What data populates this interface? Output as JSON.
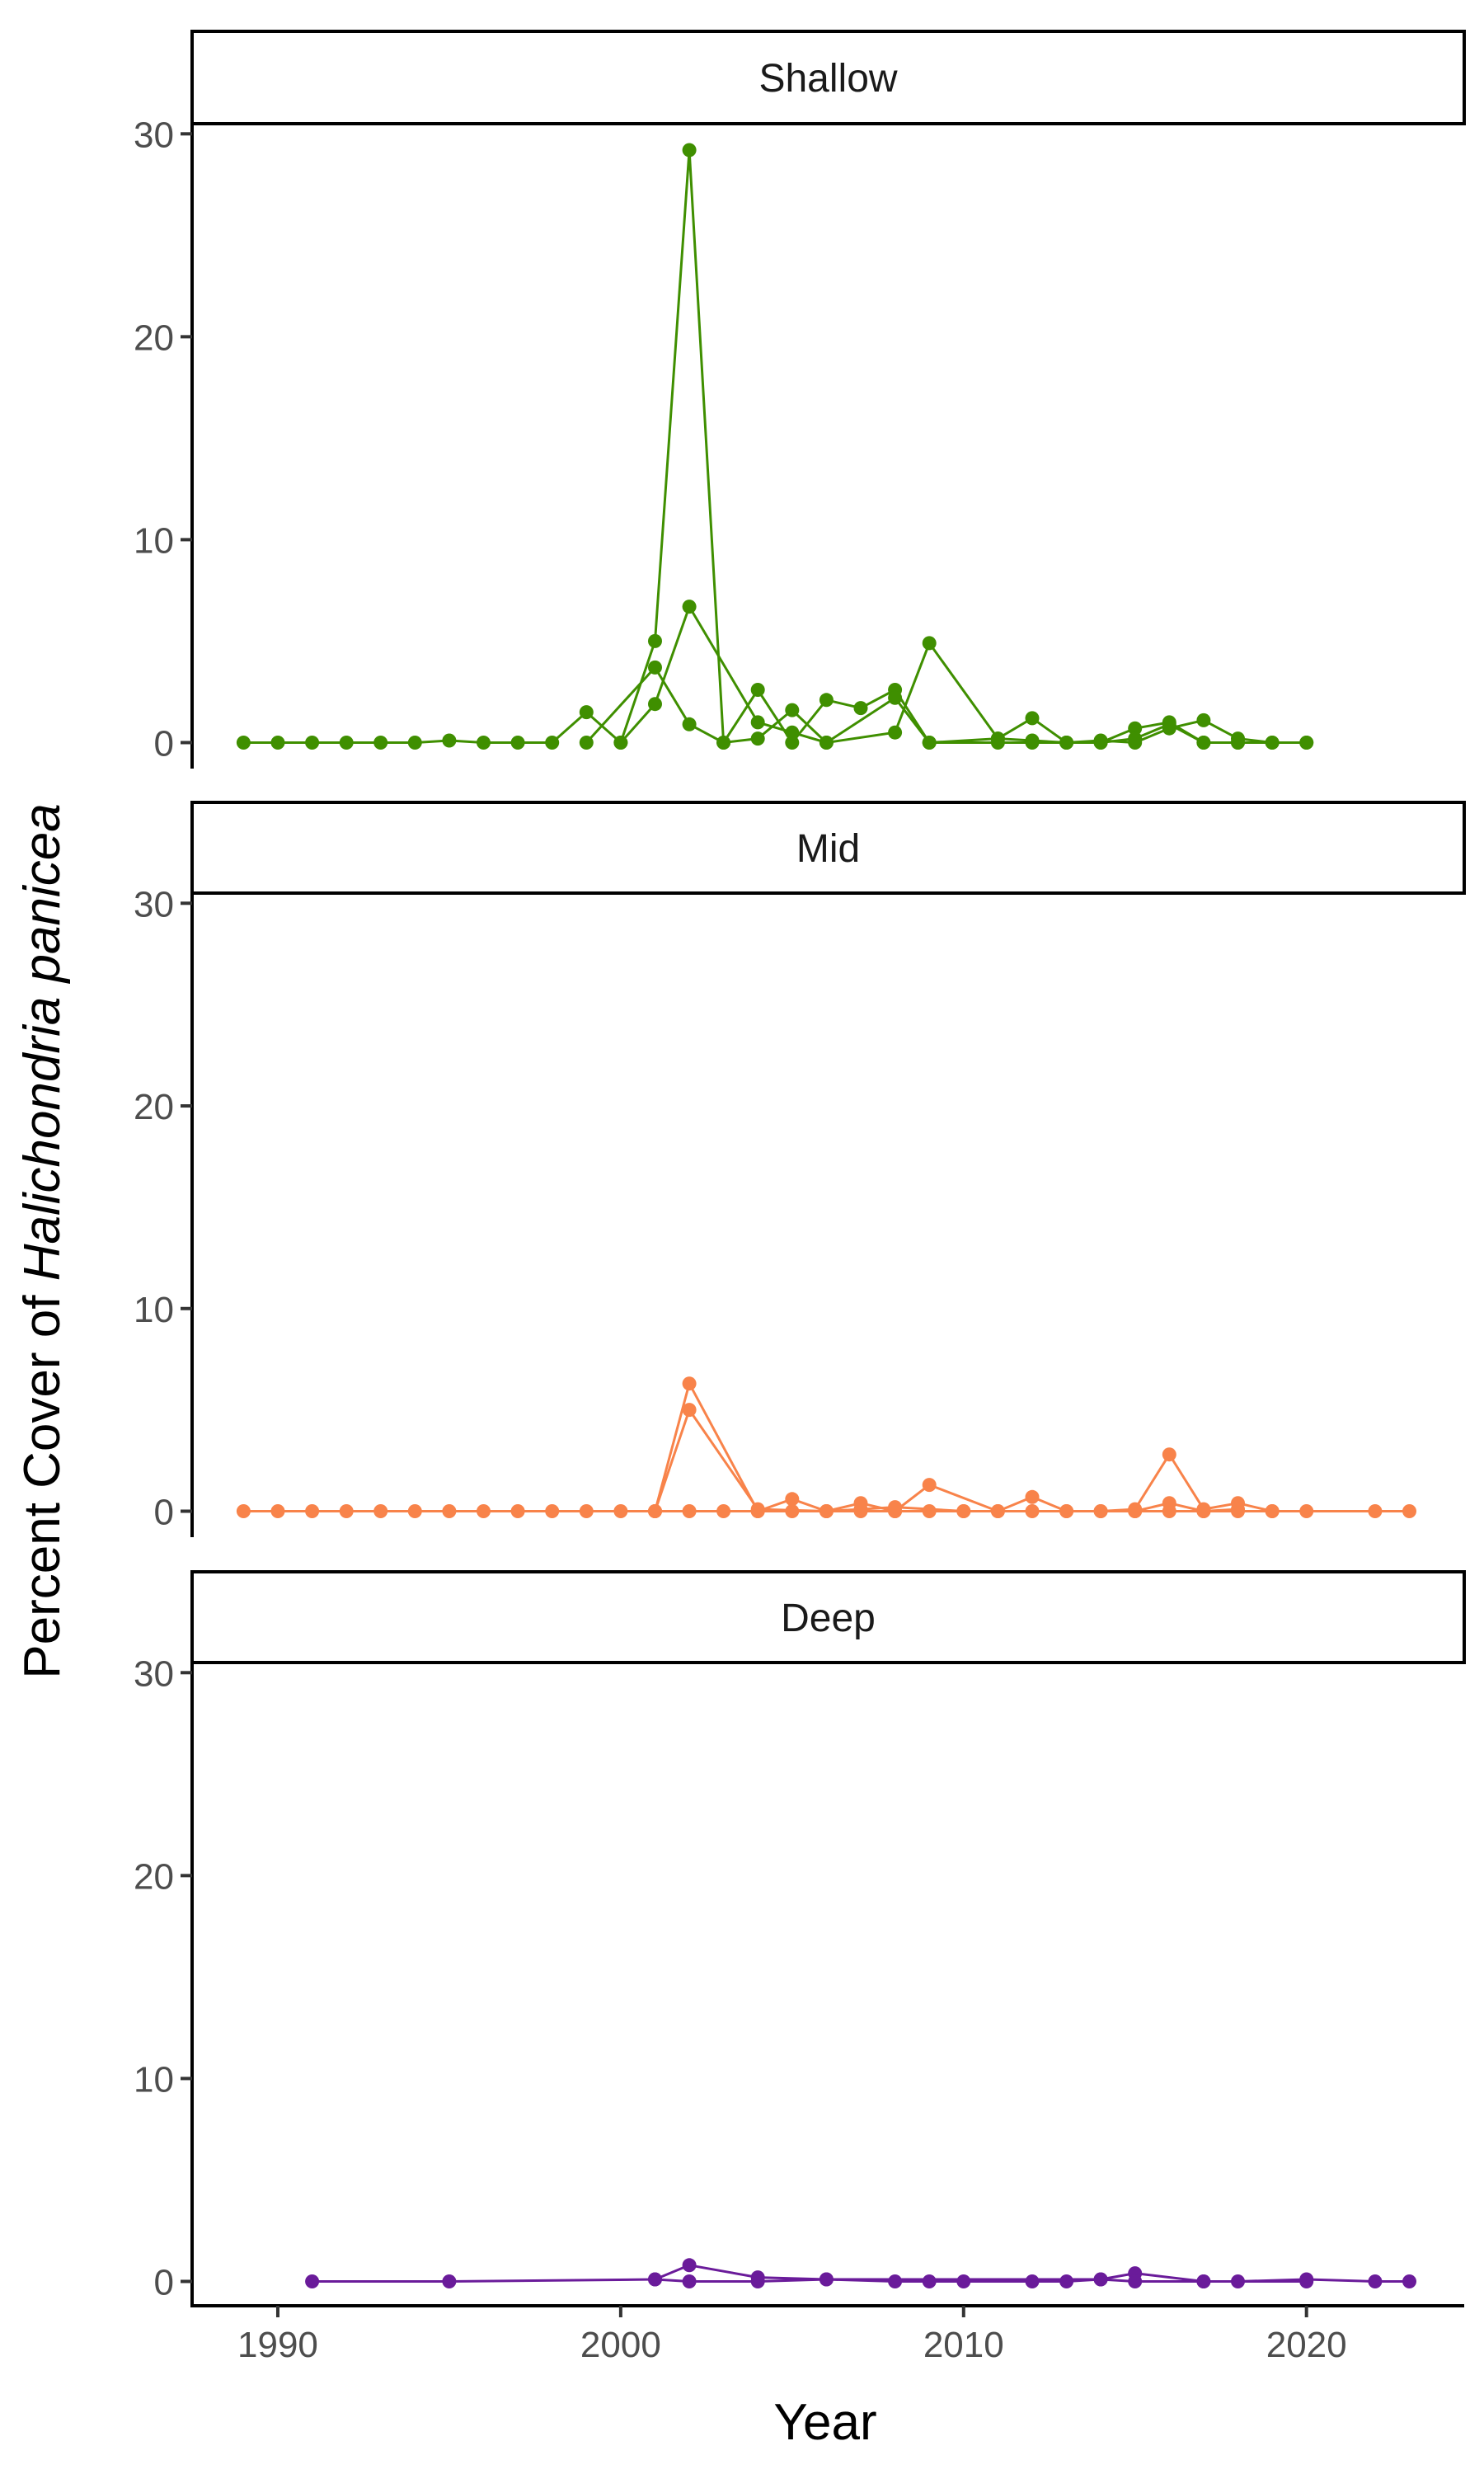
{
  "chart_data": {
    "type": "line",
    "xlabel": "Year",
    "ylabel": {
      "prefix": "Percent Cover of ",
      "species": "Halichondria panicea"
    },
    "xlim": [
      1987.5,
      2024.6
    ],
    "ylim": [
      -1.2,
      30.5
    ],
    "x_ticks": [
      1990,
      2000,
      2010,
      2020
    ],
    "y_ticks": [
      0,
      10,
      20,
      30
    ],
    "grid": false,
    "panels": [
      {
        "name": "Shallow",
        "color": "#3f8f00",
        "series": [
          {
            "points": [
              [
                1989,
                0
              ],
              [
                1990,
                0
              ],
              [
                1991,
                0
              ],
              [
                1992,
                0
              ],
              [
                1993,
                0
              ],
              [
                1994,
                0
              ],
              [
                1995,
                0.1
              ],
              [
                1996,
                0
              ],
              [
                1997,
                0
              ],
              [
                1998,
                0
              ],
              [
                1999,
                1.5
              ],
              [
                2000,
                0
              ],
              [
                2001,
                5.0
              ],
              [
                2002,
                29.2
              ],
              [
                2003,
                0
              ],
              [
                2004,
                2.6
              ],
              [
                2005,
                0
              ],
              [
                2006,
                2.1
              ],
              [
                2007,
                1.7
              ],
              [
                2008,
                2.6
              ],
              [
                2009,
                0
              ],
              [
                2011,
                0
              ],
              [
                2012,
                0
              ],
              [
                2013,
                0
              ],
              [
                2014,
                0
              ],
              [
                2015,
                0.7
              ],
              [
                2016,
                1.0
              ],
              [
                2017,
                0
              ],
              [
                2018,
                0
              ],
              [
                2019,
                0
              ],
              [
                2020,
                0
              ]
            ]
          },
          {
            "points": [
              [
                1999,
                0
              ],
              [
                2001,
                3.7
              ],
              [
                2002,
                0.9
              ],
              [
                2003,
                0
              ],
              [
                2004,
                0.2
              ],
              [
                2005,
                1.6
              ],
              [
                2006,
                0
              ],
              [
                2008,
                2.2
              ],
              [
                2009,
                0
              ],
              [
                2011,
                0.2
              ],
              [
                2012,
                1.2
              ],
              [
                2013,
                0
              ],
              [
                2014,
                0.1
              ],
              [
                2015,
                0
              ],
              [
                2016,
                0.7
              ],
              [
                2017,
                1.1
              ],
              [
                2018,
                0.2
              ],
              [
                2019,
                0
              ]
            ]
          },
          {
            "points": [
              [
                2000,
                0
              ],
              [
                2001,
                1.9
              ],
              [
                2002,
                6.7
              ],
              [
                2004,
                1.0
              ],
              [
                2005,
                0.5
              ],
              [
                2006,
                0
              ],
              [
                2008,
                0.5
              ],
              [
                2009,
                4.9
              ],
              [
                2011,
                0.2
              ],
              [
                2012,
                0.1
              ],
              [
                2013,
                0
              ],
              [
                2014,
                0
              ],
              [
                2015,
                0.2
              ],
              [
                2016,
                0.9
              ],
              [
                2017,
                0
              ],
              [
                2018,
                0
              ],
              [
                2020,
                0
              ]
            ]
          }
        ]
      },
      {
        "name": "Mid",
        "color": "#f8834a",
        "series": [
          {
            "points": [
              [
                1989,
                0
              ],
              [
                1990,
                0
              ],
              [
                1991,
                0
              ],
              [
                1992,
                0
              ],
              [
                1993,
                0
              ],
              [
                1994,
                0
              ],
              [
                1995,
                0
              ],
              [
                1996,
                0
              ],
              [
                1997,
                0
              ],
              [
                1998,
                0
              ],
              [
                1999,
                0
              ],
              [
                2000,
                0
              ],
              [
                2001,
                0
              ],
              [
                2002,
                0
              ],
              [
                2003,
                0
              ],
              [
                2004,
                0
              ],
              [
                2005,
                0
              ],
              [
                2006,
                0
              ],
              [
                2007,
                0
              ],
              [
                2008,
                0
              ],
              [
                2009,
                0
              ],
              [
                2010,
                0
              ],
              [
                2011,
                0
              ],
              [
                2012,
                0
              ],
              [
                2013,
                0
              ],
              [
                2014,
                0
              ],
              [
                2015,
                0
              ],
              [
                2016,
                0
              ],
              [
                2017,
                0
              ],
              [
                2018,
                0
              ],
              [
                2019,
                0
              ],
              [
                2020,
                0
              ],
              [
                2022,
                0
              ],
              [
                2023,
                0
              ]
            ]
          },
          {
            "points": [
              [
                2001,
                0
              ],
              [
                2002,
                6.3
              ],
              [
                2004,
                0
              ],
              [
                2005,
                0.6
              ],
              [
                2006,
                0
              ],
              [
                2007,
                0.4
              ],
              [
                2008,
                0
              ],
              [
                2009,
                1.3
              ],
              [
                2011,
                0
              ],
              [
                2012,
                0.7
              ],
              [
                2013,
                0
              ],
              [
                2014,
                0
              ],
              [
                2015,
                0.1
              ],
              [
                2016,
                2.8
              ],
              [
                2017,
                0.1
              ],
              [
                2018,
                0.4
              ],
              [
                2019,
                0
              ]
            ]
          },
          {
            "points": [
              [
                2001,
                0
              ],
              [
                2002,
                5.0
              ],
              [
                2004,
                0.1
              ],
              [
                2006,
                0
              ],
              [
                2007,
                0.1
              ],
              [
                2008,
                0.2
              ],
              [
                2010,
                0
              ],
              [
                2015,
                0
              ],
              [
                2016,
                0.4
              ],
              [
                2017,
                0
              ],
              [
                2018,
                0.1
              ]
            ]
          }
        ]
      },
      {
        "name": "Deep",
        "color": "#6a1b9a",
        "series": [
          {
            "points": [
              [
                1991,
                0
              ],
              [
                1995,
                0
              ],
              [
                2001,
                0.1
              ],
              [
                2002,
                0.8
              ],
              [
                2004,
                0.2
              ],
              [
                2006,
                0.1
              ],
              [
                2008,
                0
              ],
              [
                2009,
                0
              ],
              [
                2010,
                0
              ],
              [
                2012,
                0
              ],
              [
                2013,
                0
              ],
              [
                2014,
                0.1
              ],
              [
                2015,
                0.4
              ],
              [
                2017,
                0
              ],
              [
                2018,
                0
              ],
              [
                2020,
                0.1
              ],
              [
                2022,
                0
              ],
              [
                2023,
                0
              ]
            ]
          },
          {
            "points": [
              [
                2001,
                0.1
              ],
              [
                2002,
                0
              ],
              [
                2004,
                0
              ],
              [
                2006,
                0.1
              ],
              [
                2014,
                0.1
              ],
              [
                2015,
                0
              ],
              [
                2017,
                0
              ],
              [
                2020,
                0
              ]
            ]
          }
        ]
      }
    ]
  }
}
